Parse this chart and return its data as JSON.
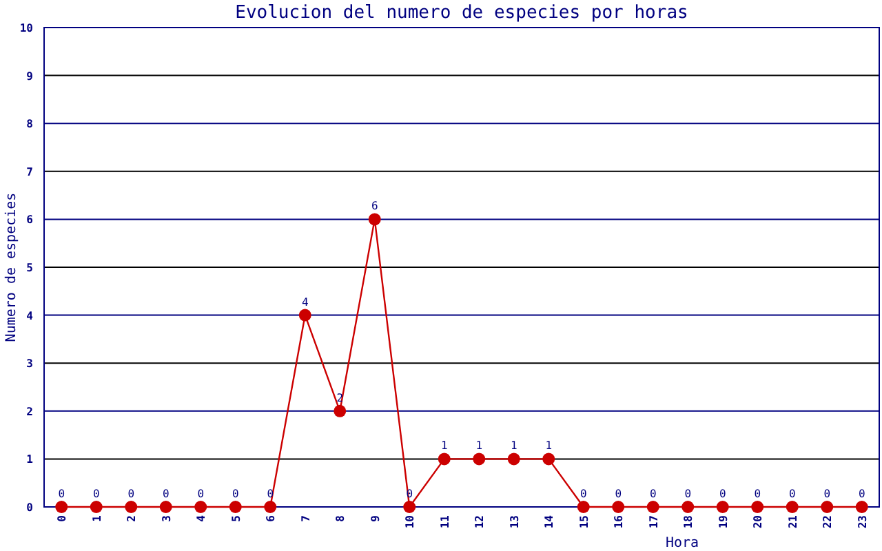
{
  "chart_data": {
    "type": "line",
    "title": "Evolucion del numero de especies por horas",
    "xlabel": "Hora",
    "ylabel": "Numero de especies",
    "categories": [
      "0",
      "1",
      "2",
      "3",
      "4",
      "5",
      "6",
      "7",
      "8",
      "9",
      "10",
      "11",
      "12",
      "13",
      "14",
      "15",
      "16",
      "17",
      "18",
      "19",
      "20",
      "21",
      "22",
      "23"
    ],
    "series": [
      {
        "color": "#cc0000",
        "values": [
          0,
          0,
          0,
          0,
          0,
          0,
          0,
          4,
          2,
          6,
          0,
          1,
          1,
          1,
          1,
          0,
          0,
          0,
          0,
          0,
          0,
          0,
          0,
          0
        ]
      }
    ],
    "ylim": [
      0,
      10
    ],
    "yticks": [
      0,
      1,
      2,
      3,
      4,
      5,
      6,
      7,
      8,
      9,
      10
    ],
    "grid": "y",
    "marker": "circle",
    "line_style": "solid",
    "data_labels": true
  }
}
